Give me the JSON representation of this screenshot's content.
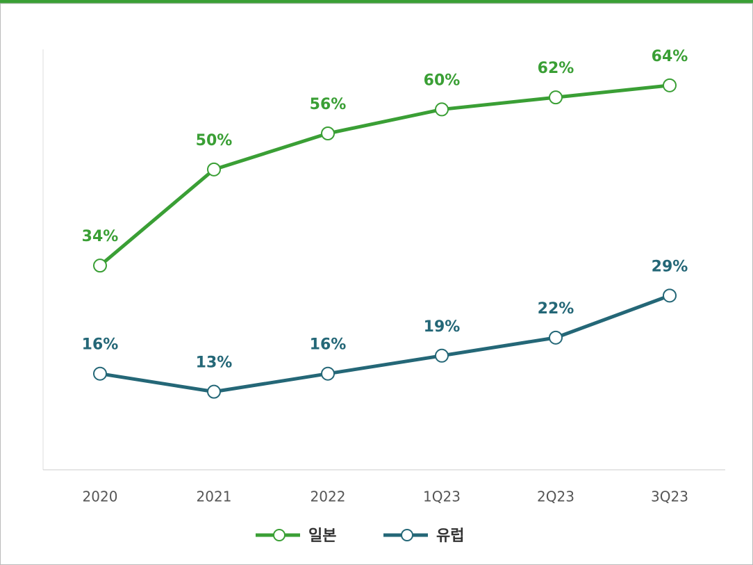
{
  "chart_data": {
    "type": "line",
    "categories": [
      "2020",
      "2021",
      "2022",
      "1Q23",
      "2Q23",
      "3Q23"
    ],
    "series": [
      {
        "name": "일본",
        "color": "#3a9f35",
        "values": [
          34,
          50,
          56,
          60,
          62,
          64
        ],
        "value_labels": [
          "34%",
          "50%",
          "56%",
          "60%",
          "62%",
          "64%"
        ]
      },
      {
        "name": "유럽",
        "color": "#246777",
        "values": [
          16,
          13,
          16,
          19,
          22,
          29
        ],
        "value_labels": [
          "16%",
          "13%",
          "16%",
          "19%",
          "22%",
          "29%"
        ]
      }
    ],
    "ylim": [
      0,
      70
    ],
    "legend": "bottom"
  }
}
